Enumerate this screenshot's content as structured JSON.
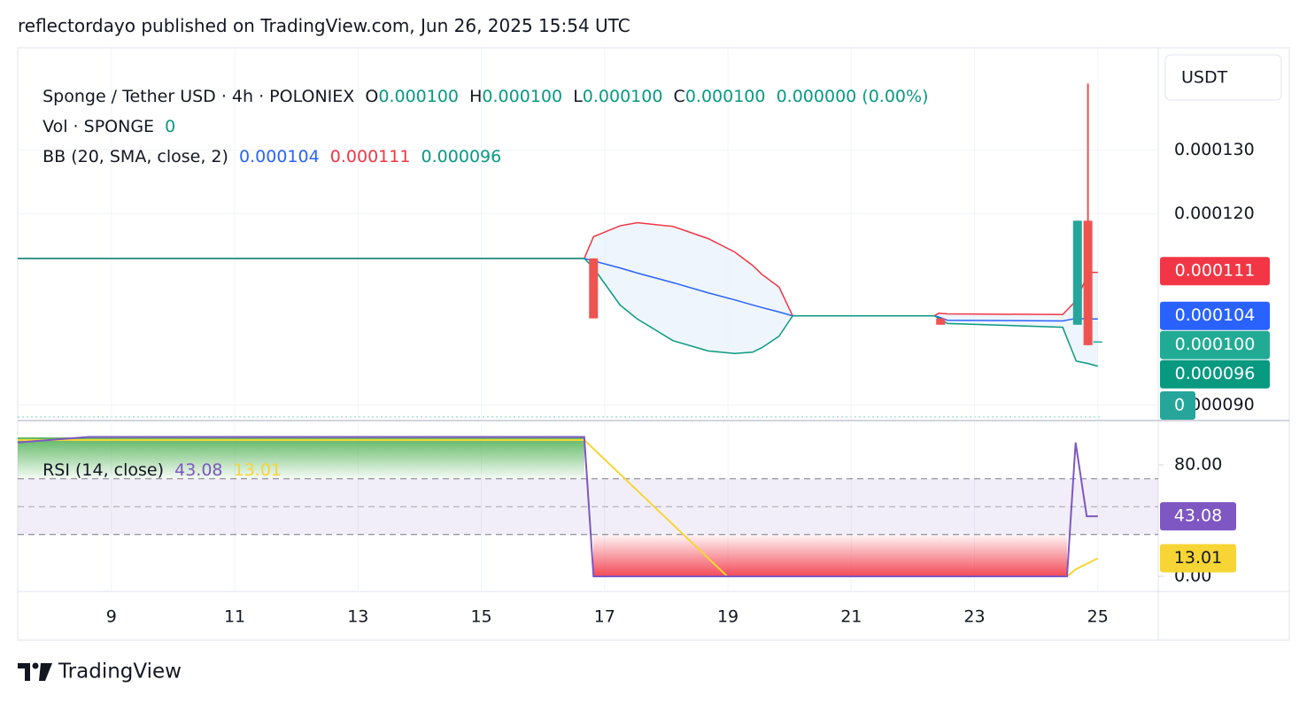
{
  "header": {
    "text": "reflectordayo published on TradingView.com, Jun 26, 2025 15:54 UTC"
  },
  "chart_data": [
    {
      "type": "candlestick",
      "title": "Sponge / Tether USD · 4h · POLONIEX",
      "ohlc_legend": [
        {
          "key": "O",
          "value": "0.000100"
        },
        {
          "key": "H",
          "value": "0.000100"
        },
        {
          "key": "L",
          "value": "0.000100"
        },
        {
          "key": "C",
          "value": "0.000100"
        }
      ],
      "change": "0.000000 (0.00%)",
      "legend_color": "#089981",
      "volume_legend": {
        "name": "Vol · SPONGE",
        "value": "0",
        "badge": "0",
        "color": "#26a69a"
      },
      "bb_legend": {
        "name": "BB (20, SMA, close, 2)",
        "values": [
          "0.000104",
          "0.000111",
          "0.000096"
        ]
      },
      "currency": "USDT",
      "x": [
        16.82,
        22.45,
        24.67,
        24.84,
        25.0
      ],
      "open": [
        0.000113,
        0.0001036,
        0.0001026,
        0.0001189,
        0.0001
      ],
      "high": [
        0.000113,
        0.0001036,
        0.0001189,
        0.0001404,
        0.0001
      ],
      "low": [
        0.0001036,
        0.0001026,
        0.0001026,
        9.94e-05,
        0.0001
      ],
      "close": [
        0.0001036,
        0.0001026,
        0.0001189,
        9.94e-05,
        0.0001
      ],
      "up_color": "#26a69a",
      "down_color": "#ef5350",
      "bands_x": [
        7.48,
        16.67,
        16.82,
        17.25,
        17.53,
        18.11,
        18.68,
        19.11,
        19.4,
        19.55,
        19.83,
        20.05,
        22.35,
        22.42,
        22.56,
        24.43,
        24.65,
        24.85,
        25.0
      ],
      "bands": [
        {
          "color": "#2962ff",
          "values": [
            0.000113,
            0.000113,
            0.0001126,
            0.0001115,
            0.0001107,
            0.0001092,
            0.0001076,
            0.0001065,
            0.0001057,
            0.0001053,
            0.0001046,
            0.000104,
            0.000104,
            0.0001038,
            0.0001033,
            0.0001032,
            0.0001036,
            0.0001035,
            0.0001035
          ]
        },
        {
          "color": "#f23645",
          "values": [
            0.000113,
            0.000113,
            0.0001164,
            0.0001181,
            0.0001186,
            0.000118,
            0.0001161,
            0.000114,
            0.0001119,
            0.0001105,
            0.0001085,
            0.000104,
            0.000104,
            0.0001044,
            0.0001043,
            0.0001042,
            0.0001064,
            0.0001108,
            0.0001108
          ]
        },
        {
          "color": "#089981",
          "values": [
            0.000113,
            0.000113,
            0.0001115,
            0.0001057,
            0.0001035,
            0.0001001,
            9.85e-05,
            9.81e-05,
            9.83e-05,
            9.9e-05,
            0.0001008,
            0.000104,
            0.000104,
            0.0001036,
            0.0001028,
            0.0001022,
            9.69e-05,
            9.65e-05,
            9.61e-05
          ]
        }
      ],
      "band_fill": "#e3eefa",
      "price_labels": [
        {
          "value": 0.000111,
          "label": "0.000111",
          "color": "#f23645"
        },
        {
          "value": 0.000104,
          "label": "0.000104",
          "color": "#2962ff"
        },
        {
          "value": 0.0001,
          "label": "0.000100",
          "color": "#22ab94"
        },
        {
          "value": 9.6e-05,
          "label": "0.000096",
          "color": "#089981"
        }
      ],
      "xlim": [
        7.48,
        25.98
      ],
      "ylim": [
        8.8e-05,
        0.000146
      ],
      "yticks": [
        {
          "value": 0.00013,
          "label": "0.000130"
        },
        {
          "value": 0.00012,
          "label": "0.000120"
        },
        {
          "value": 9e-05,
          "label": "0.000090"
        }
      ],
      "grid": true
    },
    {
      "type": "line",
      "title": "RSI (14, close)",
      "series": [
        {
          "color": "#7e57c2",
          "legend": "43.08",
          "x": [
            7.48,
            8.63,
            16.67,
            16.82,
            24.5,
            24.64,
            24.82,
            25.0
          ],
          "values": [
            96,
            100,
            100,
            0,
            0,
            96,
            43.08,
            43.08
          ]
        },
        {
          "color": "#f7d534",
          "legend": "13.01",
          "x": [
            7.48,
            16.67,
            18.99,
            24.5,
            24.64,
            25.0
          ],
          "values": [
            97.8,
            97.8,
            0,
            0,
            5,
            13.01
          ]
        }
      ],
      "levels": [
        70,
        50,
        30
      ],
      "price_labels": [
        {
          "value": 43.08,
          "label": "43.08",
          "color": "#7e57c2"
        },
        {
          "value": 13.01,
          "label": "13.01",
          "color": "#f7d534"
        }
      ],
      "xlim": [
        7.48,
        25.98
      ],
      "xticks": [
        9,
        11,
        13,
        15,
        17,
        19,
        21,
        23,
        25
      ],
      "ylim": [
        -10.8,
        111.1
      ],
      "yticks": [
        {
          "value": 80,
          "label": "80.00"
        },
        {
          "value": 0,
          "label": "0.00"
        }
      ],
      "grid": true
    }
  ],
  "footer": {
    "brand": "TradingView"
  }
}
